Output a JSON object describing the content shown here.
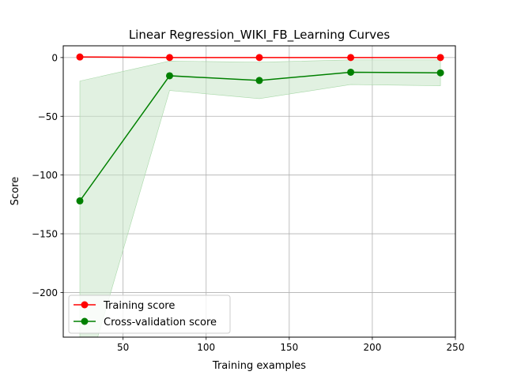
{
  "chart_data": {
    "type": "line",
    "title": "Linear Regression_WIKI_FB_Learning Curves",
    "xlabel": "Training examples",
    "ylabel": "Score",
    "xlim": [
      14,
      250
    ],
    "ylim": [
      -238,
      10
    ],
    "xticks": [
      50,
      100,
      150,
      200,
      250
    ],
    "yticks": [
      0,
      -50,
      -100,
      -150,
      -200
    ],
    "xtick_labels": [
      "50",
      "100",
      "150",
      "200",
      "250"
    ],
    "ytick_labels": [
      "0",
      "−50",
      "−100",
      "−150",
      "−200"
    ],
    "grid": true,
    "legend_position": "lower-left",
    "x": [
      24,
      78,
      132,
      187,
      241
    ],
    "series": [
      {
        "name": "Training score",
        "color": "#ff0000",
        "values": [
          0.5,
          0,
          0,
          0,
          0
        ],
        "band_low": [
          0.5,
          0,
          0,
          0,
          0
        ],
        "band_high": [
          0.5,
          0,
          0,
          0,
          0
        ]
      },
      {
        "name": "Cross-validation score",
        "color": "#008000",
        "band_color": "#c8e6c8",
        "values": [
          -122,
          -15.5,
          -19.5,
          -12.5,
          -13
        ],
        "band_low": [
          -290,
          -28,
          -35,
          -23,
          -24
        ],
        "band_high": [
          -20,
          -3,
          -4,
          -2,
          -2
        ]
      }
    ]
  }
}
